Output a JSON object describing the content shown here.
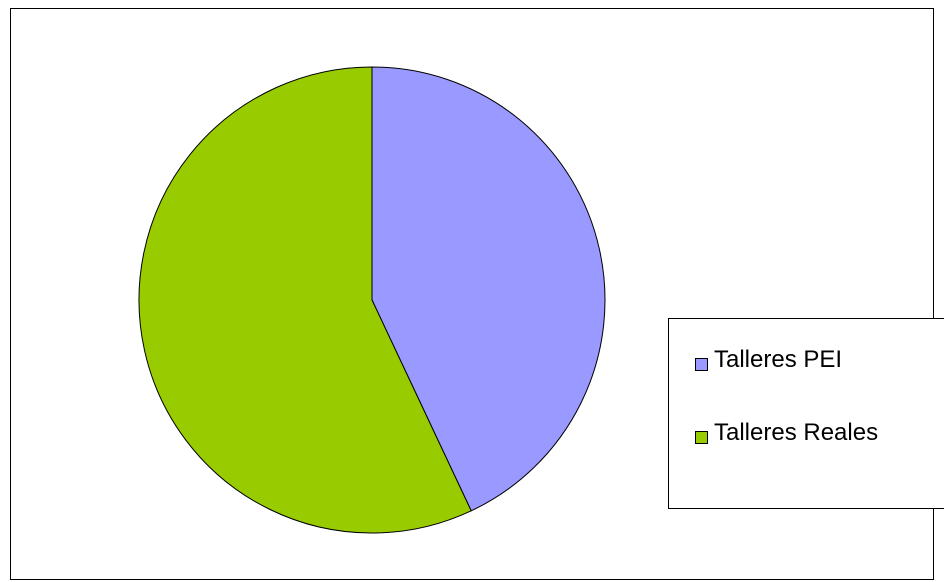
{
  "chart_data": {
    "type": "pie",
    "title": "",
    "slices": [
      {
        "label": "Talleres PEI",
        "value": 43,
        "color": "#9999ff"
      },
      {
        "label": "Talleres Reales",
        "value": 57,
        "color": "#99cc00"
      }
    ],
    "start_angle": "12 o'clock",
    "direction": "clockwise",
    "legend_position": "right"
  }
}
